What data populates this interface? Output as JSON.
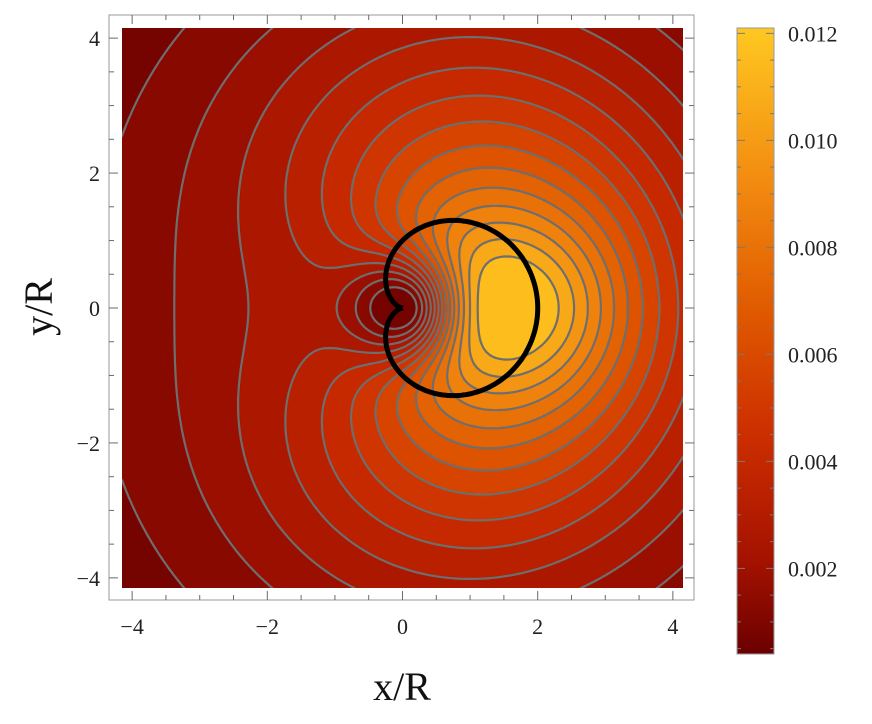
{
  "chart_data": {
    "type": "contour",
    "title": "",
    "xlabel": "x/R",
    "ylabel": "y/R",
    "xlim": [
      -4.15,
      4.15
    ],
    "ylim": [
      -4.15,
      4.15
    ],
    "x_ticks": [
      -4,
      -2,
      0,
      2,
      4
    ],
    "y_ticks": [
      -4,
      -2,
      0,
      2,
      4
    ],
    "x_tick_labels": [
      "−4",
      "−2",
      "0",
      "2",
      "4"
    ],
    "y_tick_labels": [
      "−4",
      "−2",
      "0",
      "2",
      "4"
    ],
    "grid": false,
    "colormap": {
      "name": "dark-red-to-yellow",
      "stops": [
        "#6b0000",
        "#a51200",
        "#cc2e00",
        "#e05a00",
        "#f28a10",
        "#ffc820"
      ],
      "range": [
        0.0004,
        0.0121
      ]
    },
    "colorbar": {
      "position": "right",
      "ticks": [
        0.002,
        0.004,
        0.006,
        0.008,
        0.01,
        0.012
      ],
      "tick_labels": [
        "0.002",
        "0.004",
        "0.006",
        "0.008",
        "0.010",
        "0.012"
      ]
    },
    "field": {
      "max_value": 0.0121,
      "max_location": [
        2.0,
        0.0
      ],
      "singular_point": [
        0.0,
        0.0
      ],
      "contour_levels": 14
    },
    "cardioid_curve": {
      "description_shown": false,
      "color": "#000000",
      "r_max": 2.0
    },
    "contour_line_color": "#6e6e6e"
  }
}
